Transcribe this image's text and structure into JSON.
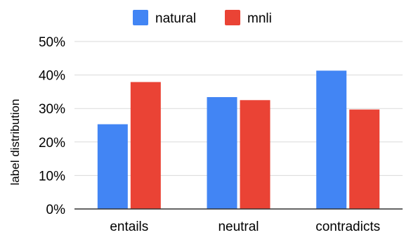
{
  "chart_data": {
    "type": "bar",
    "categories": [
      "entails",
      "neutral",
      "contradicts"
    ],
    "series": [
      {
        "name": "natural",
        "values": [
          25.3,
          33.4,
          41.3
        ],
        "color": "#4285F4"
      },
      {
        "name": "mnli",
        "values": [
          37.9,
          32.5,
          29.7
        ],
        "color": "#EA4335"
      }
    ],
    "xlabel": "",
    "ylabel": "label distribution",
    "ylim": [
      0,
      50
    ],
    "yticks": [
      "0%",
      "10%",
      "20%",
      "30%",
      "40%",
      "50%"
    ],
    "grid": true,
    "legend": "top-center"
  },
  "colors": {
    "grid": "#dadada",
    "axis": "#333333"
  }
}
